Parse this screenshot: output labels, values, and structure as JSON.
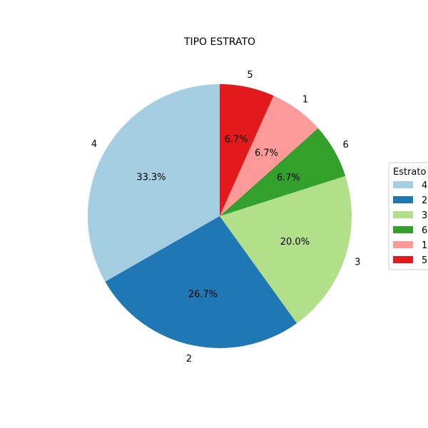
{
  "chart_data": {
    "type": "pie",
    "title": "TIPO ESTRATO",
    "start_angle_deg": 90,
    "direction": "counterclockwise",
    "slices": [
      {
        "label": "4",
        "value": 33.3,
        "pct_label": "33.3%",
        "color": "#a6cee3"
      },
      {
        "label": "2",
        "value": 26.7,
        "pct_label": "26.7%",
        "color": "#1f78b4"
      },
      {
        "label": "3",
        "value": 20.0,
        "pct_label": "20.0%",
        "color": "#b2df8a"
      },
      {
        "label": "6",
        "value": 6.7,
        "pct_label": "6.7%",
        "color": "#33a02c"
      },
      {
        "label": "1",
        "value": 6.7,
        "pct_label": "6.7%",
        "color": "#fb9a99"
      },
      {
        "label": "5",
        "value": 6.7,
        "pct_label": "6.7%",
        "color": "#e31a1c"
      }
    ],
    "legend": {
      "title": "Estrato",
      "placement": "right",
      "entries": [
        "4",
        "2",
        "3",
        "6",
        "1",
        "5"
      ]
    }
  }
}
